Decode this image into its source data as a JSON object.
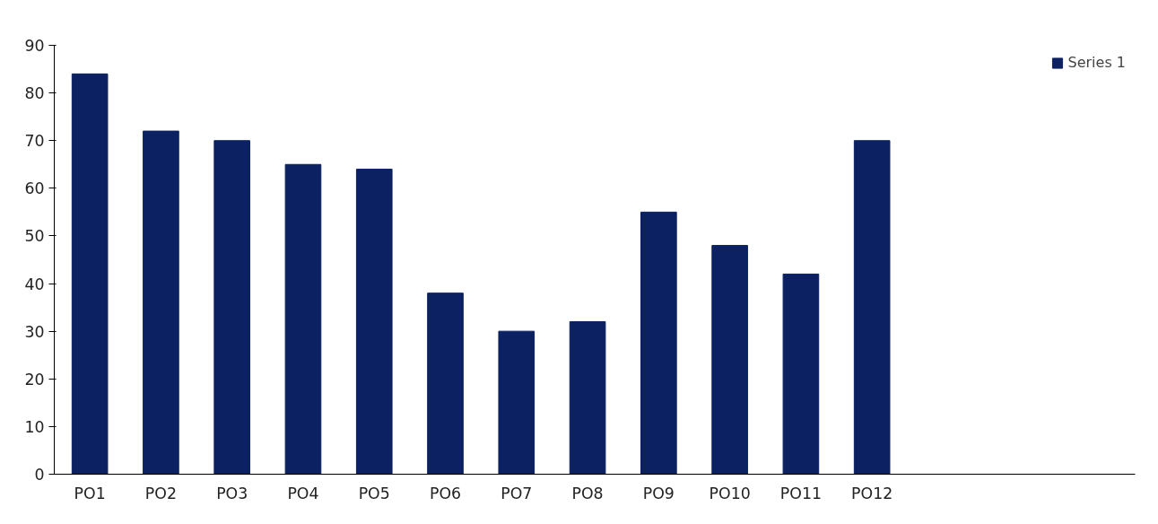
{
  "chart_data": {
    "type": "bar",
    "categories": [
      "PO1",
      "PO2",
      "PO3",
      "PO4",
      "PO5",
      "PO6",
      "PO7",
      "PO8",
      "PO9",
      "PO10",
      "PO11",
      "PO12"
    ],
    "series": [
      {
        "name": "Series 1",
        "color": "#0b2161",
        "values": [
          84,
          72,
          70,
          65,
          64,
          38,
          30,
          32,
          55,
          48,
          42,
          70
        ]
      }
    ],
    "ylim": [
      0,
      90
    ],
    "yticks": [
      0,
      10,
      20,
      30,
      40,
      50,
      60,
      70,
      80,
      90
    ],
    "grid": false,
    "legend": "top right"
  }
}
